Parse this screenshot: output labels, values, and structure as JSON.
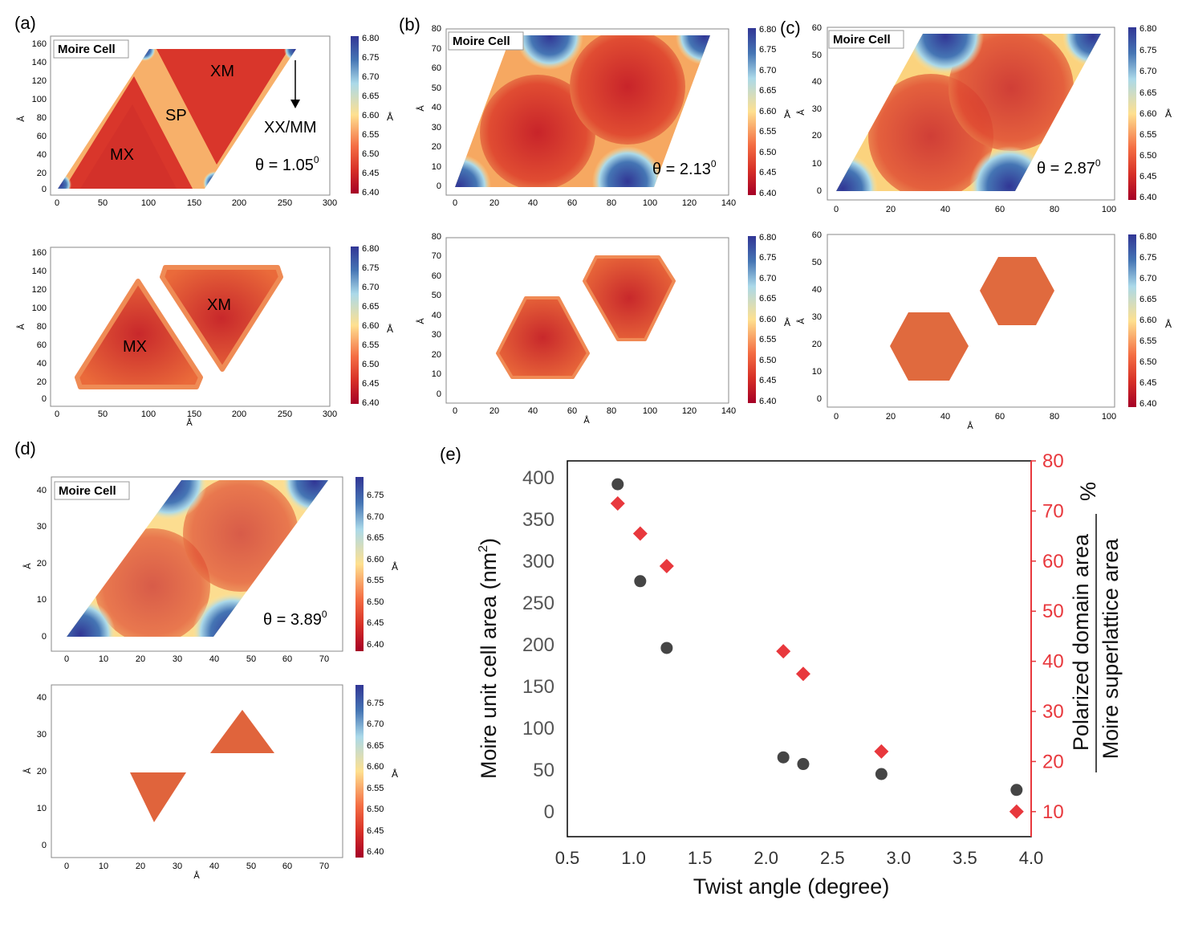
{
  "colorbar": {
    "ticks": [
      "6.80",
      "6.75",
      "6.70",
      "6.65",
      "6.60",
      "6.55",
      "6.50",
      "6.45",
      "6.40"
    ],
    "ticks_d": [
      "6.75",
      "6.70",
      "6.65",
      "6.60",
      "6.55",
      "6.50",
      "6.45",
      "6.40"
    ],
    "unit": "Å",
    "colors": {
      "high": "#313695",
      "mid_high": "#abd9e9",
      "mid": "#fee090",
      "mid_low": "#f46d43",
      "low": "#a50026"
    }
  },
  "panel_a": {
    "label": "(a)",
    "legend": "Moire Cell",
    "angle": "θ = 1.05",
    "angle_sup": "0",
    "regions": {
      "xm": "XM",
      "sp": "SP",
      "mx": "MX",
      "xxmm": "XX/MM"
    },
    "bottom_regions": {
      "xm": "XM",
      "mx": "MX"
    },
    "x_ticks": [
      "0",
      "50",
      "100",
      "150",
      "200",
      "250",
      "300"
    ],
    "y_ticks": [
      "160",
      "140",
      "120",
      "100",
      "80",
      "60",
      "40",
      "20",
      "0"
    ],
    "xlabel": "Å",
    "ylabel": "Å"
  },
  "panel_b": {
    "label": "(b)",
    "legend": "Moire Cell",
    "angle": "θ = 2.13",
    "angle_sup": "0",
    "x_ticks": [
      "0",
      "20",
      "40",
      "60",
      "80",
      "100",
      "120",
      "140"
    ],
    "y_ticks": [
      "80",
      "70",
      "60",
      "50",
      "40",
      "30",
      "20",
      "10",
      "0"
    ],
    "xlabel": "Å",
    "ylabel": "Å"
  },
  "panel_c": {
    "label": "(c)",
    "legend": "Moire Cell",
    "angle": "θ = 2.87",
    "angle_sup": "0",
    "x_ticks": [
      "0",
      "20",
      "40",
      "60",
      "80",
      "100"
    ],
    "y_ticks": [
      "60",
      "50",
      "40",
      "30",
      "20",
      "10",
      "0"
    ],
    "xlabel": "Å",
    "ylabel": "Å"
  },
  "panel_d": {
    "label": "(d)",
    "legend": "Moire Cell",
    "angle": "θ = 3.89",
    "angle_sup": "0",
    "x_ticks": [
      "0",
      "10",
      "20",
      "30",
      "40",
      "50",
      "60",
      "70"
    ],
    "y_ticks": [
      "40",
      "30",
      "20",
      "10",
      "0"
    ],
    "xlabel": "Å",
    "ylabel": "Å"
  },
  "chart_data": {
    "type": "scatter",
    "label": "(e)",
    "xlabel": "Twist angle (degree)",
    "ylabel_left": "Moire unit cell area (nm",
    "ylabel_left_sup": "2",
    "ylabel_left_end": ")",
    "ylabel_right_num": "Polarized domain area",
    "ylabel_right_den": "Moire superlattice area",
    "ylabel_right_pct": "%",
    "xlim": [
      0.5,
      4.0
    ],
    "ylim_left": [
      -30,
      420
    ],
    "ylim_right": [
      5,
      80
    ],
    "x_ticks": [
      "0.5",
      "1.0",
      "1.5",
      "2.0",
      "2.5",
      "3.0",
      "3.5",
      "4.0"
    ],
    "y_ticks_left": [
      "400",
      "350",
      "300",
      "250",
      "200",
      "150",
      "100",
      "50",
      "0"
    ],
    "y_ticks_right": [
      "80",
      "70",
      "60",
      "50",
      "40",
      "30",
      "20",
      "10"
    ],
    "series": [
      {
        "name": "Moire unit cell area",
        "axis": "left",
        "marker": "circle",
        "color": "#454545",
        "x": [
          0.88,
          1.05,
          1.25,
          2.13,
          2.28,
          2.87,
          3.89
        ],
        "y": [
          392,
          276,
          196,
          65,
          57,
          45,
          26
        ]
      },
      {
        "name": "Polarized domain area / Moire superlattice area",
        "axis": "right",
        "marker": "diamond",
        "color": "#e8383d",
        "x": [
          0.88,
          1.05,
          1.25,
          2.13,
          2.28,
          2.87,
          3.89
        ],
        "y": [
          71.5,
          65.5,
          59,
          42,
          37.5,
          22,
          10
        ]
      }
    ]
  }
}
